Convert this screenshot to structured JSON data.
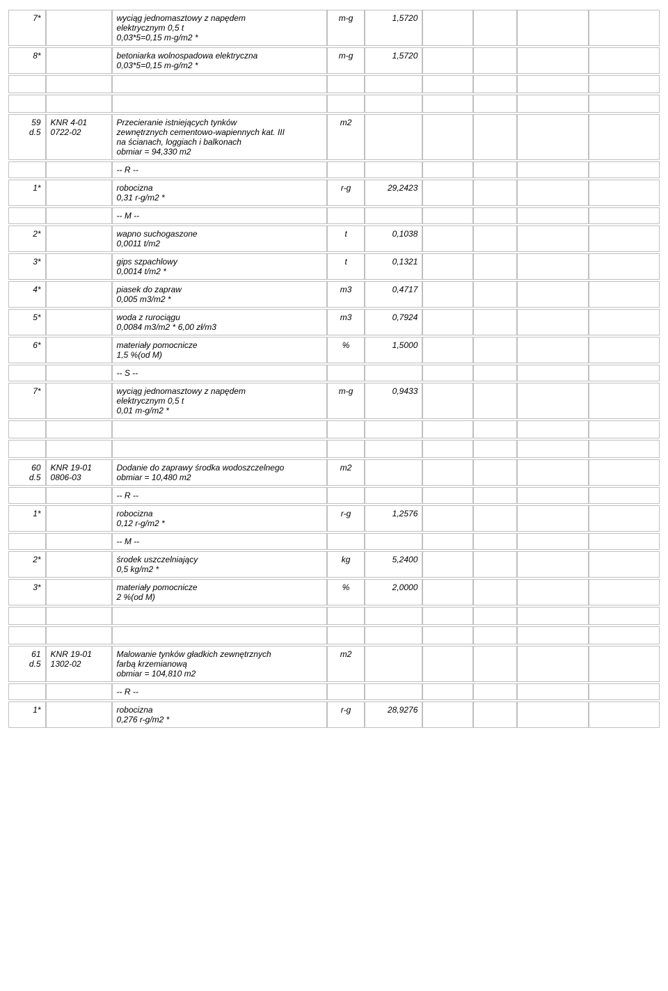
{
  "rows": [
    {
      "type": "row",
      "c1": "7*",
      "c2": "",
      "c3": [
        "wyciąg jednomasztowy z napędem",
        "elektrycznym 0,5 t",
        "0,03*5=0,15 m-g/m2 *"
      ],
      "c4": "m-g",
      "c5": "1,5720"
    },
    {
      "type": "row",
      "c1": "8*",
      "c2": "",
      "c3": [
        "betoniarka wolnospadowa elektryczna",
        "0,03*5=0,15 m-g/m2 *"
      ],
      "c4": "m-g",
      "c5": "1,5720"
    },
    {
      "type": "spacer"
    },
    {
      "type": "spacer"
    },
    {
      "type": "row",
      "c1": "59\nd.5",
      "c2": "KNR 4-01\n0722-02",
      "c3": [
        "Przecieranie istniejących tynków",
        "zewnętrznych cementowo-wapiennych kat. III",
        "na ścianach, loggiach i balkonach",
        "obmiar = 94,330 m2"
      ],
      "c4": "m2",
      "c5": ""
    },
    {
      "type": "row",
      "c1": "",
      "c2": "",
      "c3": [
        "-- R --"
      ],
      "c4": "",
      "c5": ""
    },
    {
      "type": "row",
      "c1": "1*",
      "c2": "",
      "c3": [
        "robocizna",
        "0,31 r-g/m2 *"
      ],
      "c4": "r-g",
      "c5": "29,2423"
    },
    {
      "type": "row",
      "c1": "",
      "c2": "",
      "c3": [
        "-- M --"
      ],
      "c4": "",
      "c5": ""
    },
    {
      "type": "row",
      "c1": "2*",
      "c2": "",
      "c3": [
        "wapno suchogaszone",
        "0,0011 t/m2"
      ],
      "c4": "t",
      "c5": "0,1038"
    },
    {
      "type": "row",
      "c1": "3*",
      "c2": "",
      "c3": [
        "gips szpachlowy",
        "0,0014 t/m2 *"
      ],
      "c4": "t",
      "c5": "0,1321"
    },
    {
      "type": "row",
      "c1": "4*",
      "c2": "",
      "c3": [
        "piasek do zapraw",
        "0,005 m3/m2 *"
      ],
      "c4": "m3",
      "c5": "0,4717"
    },
    {
      "type": "row",
      "c1": "5*",
      "c2": "",
      "c3": [
        "woda z rurociągu",
        "0,0084 m3/m2 * 6,00 zł/m3"
      ],
      "c4": "m3",
      "c5": "0,7924"
    },
    {
      "type": "row",
      "c1": "6*",
      "c2": "",
      "c3": [
        "materiały pomocnicze",
        "1,5 %(od M)"
      ],
      "c4": "%",
      "c5": "1,5000"
    },
    {
      "type": "row",
      "c1": "",
      "c2": "",
      "c3": [
        "-- S --"
      ],
      "c4": "",
      "c5": ""
    },
    {
      "type": "row",
      "c1": "7*",
      "c2": "",
      "c3": [
        "wyciąg jednomasztowy z napędem",
        "elektrycznym 0,5 t",
        "0,01 m-g/m2 *"
      ],
      "c4": "m-g",
      "c5": "0,9433"
    },
    {
      "type": "spacer"
    },
    {
      "type": "spacer"
    },
    {
      "type": "row",
      "c1": "60\nd.5",
      "c2": "KNR 19-01\n0806-03",
      "c3": [
        "Dodanie do zaprawy środka wodoszczelnego",
        "obmiar = 10,480 m2"
      ],
      "c4": "m2",
      "c5": ""
    },
    {
      "type": "row",
      "c1": "",
      "c2": "",
      "c3": [
        "-- R --"
      ],
      "c4": "",
      "c5": ""
    },
    {
      "type": "row",
      "c1": "1*",
      "c2": "",
      "c3": [
        "robocizna",
        "0,12 r-g/m2 *"
      ],
      "c4": "r-g",
      "c5": "1,2576"
    },
    {
      "type": "row",
      "c1": "",
      "c2": "",
      "c3": [
        "-- M --"
      ],
      "c4": "",
      "c5": ""
    },
    {
      "type": "row",
      "c1": "2*",
      "c2": "",
      "c3": [
        "środek uszczelniający",
        "0,5 kg/m2 *"
      ],
      "c4": "kg",
      "c5": "5,2400"
    },
    {
      "type": "row",
      "c1": "3*",
      "c2": "",
      "c3": [
        "materiały pomocnicze",
        "2 %(od M)"
      ],
      "c4": "%",
      "c5": "2,0000"
    },
    {
      "type": "spacer"
    },
    {
      "type": "spacer"
    },
    {
      "type": "row",
      "c1": "61\nd.5",
      "c2": "KNR 19-01\n1302-02",
      "c3": [
        "Malowanie tynków gładkich zewnętrznych",
        "farbą krzemianową",
        "obmiar = 104,810 m2"
      ],
      "c4": "m2",
      "c5": ""
    },
    {
      "type": "row",
      "c1": "",
      "c2": "",
      "c3": [
        "-- R --"
      ],
      "c4": "",
      "c5": ""
    },
    {
      "type": "row",
      "c1": "1*",
      "c2": "",
      "c3": [
        "robocizna",
        "0,276 r-g/m2 *"
      ],
      "c4": "r-g",
      "c5": "28,9276"
    }
  ]
}
